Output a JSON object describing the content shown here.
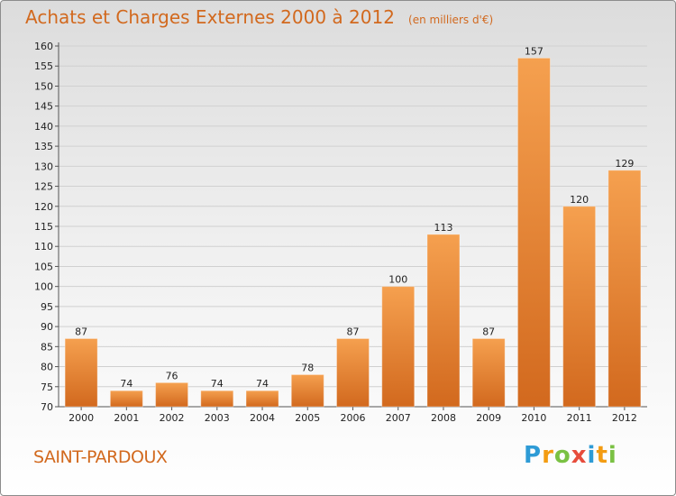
{
  "title": "Achats et Charges Externes 2000 à 2012",
  "subtitle": "(en milliers d'€)",
  "city": "SAINT-PARDOUX",
  "logo": {
    "text": "Proxiti",
    "letters": [
      {
        "ch": "P",
        "color": "#2e9bd6"
      },
      {
        "ch": "r",
        "color": "#f39c12"
      },
      {
        "ch": "o",
        "color": "#7ac143"
      },
      {
        "ch": "x",
        "color": "#e74c3c"
      },
      {
        "ch": "i",
        "color": "#2e9bd6"
      },
      {
        "ch": "t",
        "color": "#f39c12"
      },
      {
        "ch": "i",
        "color": "#7ac143"
      }
    ]
  },
  "colors": {
    "accent": "#d2691e",
    "bar_light": "#f5a04f",
    "bar_dark": "#d2691e"
  },
  "chart_data": {
    "type": "bar",
    "categories": [
      "2000",
      "2001",
      "2002",
      "2003",
      "2004",
      "2005",
      "2006",
      "2007",
      "2008",
      "2009",
      "2010",
      "2011",
      "2012"
    ],
    "values": [
      87,
      74,
      76,
      74,
      74,
      78,
      87,
      100,
      113,
      87,
      157,
      120,
      129
    ],
    "title": "Achats et Charges Externes 2000 à 2012",
    "subtitle": "(en milliers d'€)",
    "ylim": [
      70,
      160
    ],
    "yticks": [
      70,
      75,
      80,
      85,
      90,
      95,
      100,
      105,
      110,
      115,
      120,
      125,
      130,
      135,
      140,
      145,
      150,
      155,
      160
    ],
    "grid": true
  }
}
